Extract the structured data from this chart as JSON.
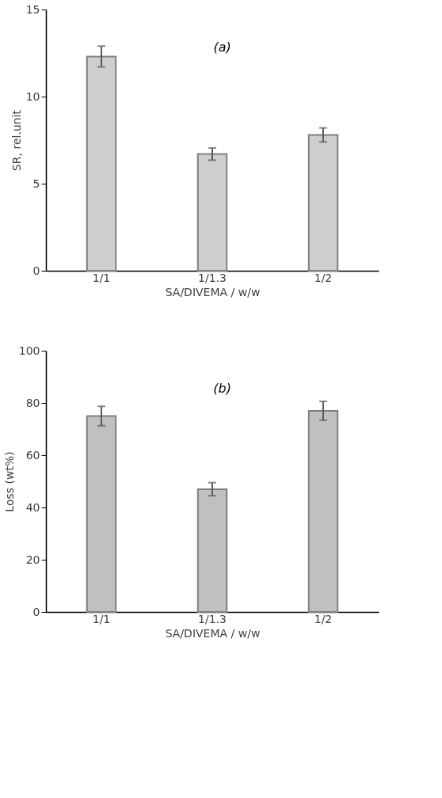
{
  "chart_data": [
    {
      "type": "bar",
      "annotations": [
        "(a)"
      ],
      "xlabel": "SA/DIVEMA / w/w",
      "ylabel": "SR, rel.unit",
      "categories": [
        "1/1",
        "1/1.3",
        "1/2"
      ],
      "series": [
        {
          "color": "#a6a6a6",
          "values": [
            12.3,
            6.7,
            7.8
          ],
          "errors": [
            0.6,
            0.35,
            0.4
          ]
        }
      ],
      "ylim": [
        0,
        15
      ],
      "yticks": [
        0,
        5,
        10,
        15
      ],
      "grid": false
    },
    {
      "type": "bar",
      "annotations": [
        "(b)"
      ],
      "xlabel": "SA/DIVEMA / w/w",
      "ylabel": "Loss (wt%)",
      "categories": [
        "1/1",
        "1/1.3",
        "1/2"
      ],
      "series": [
        {
          "color": "#8c8c8c",
          "values": [
            75,
            47,
            77
          ],
          "errors": [
            3.7,
            2.5,
            3.6
          ]
        }
      ],
      "ylim": [
        0,
        100
      ],
      "yticks": [
        0,
        20,
        40,
        60,
        80,
        100
      ],
      "grid": false
    }
  ]
}
